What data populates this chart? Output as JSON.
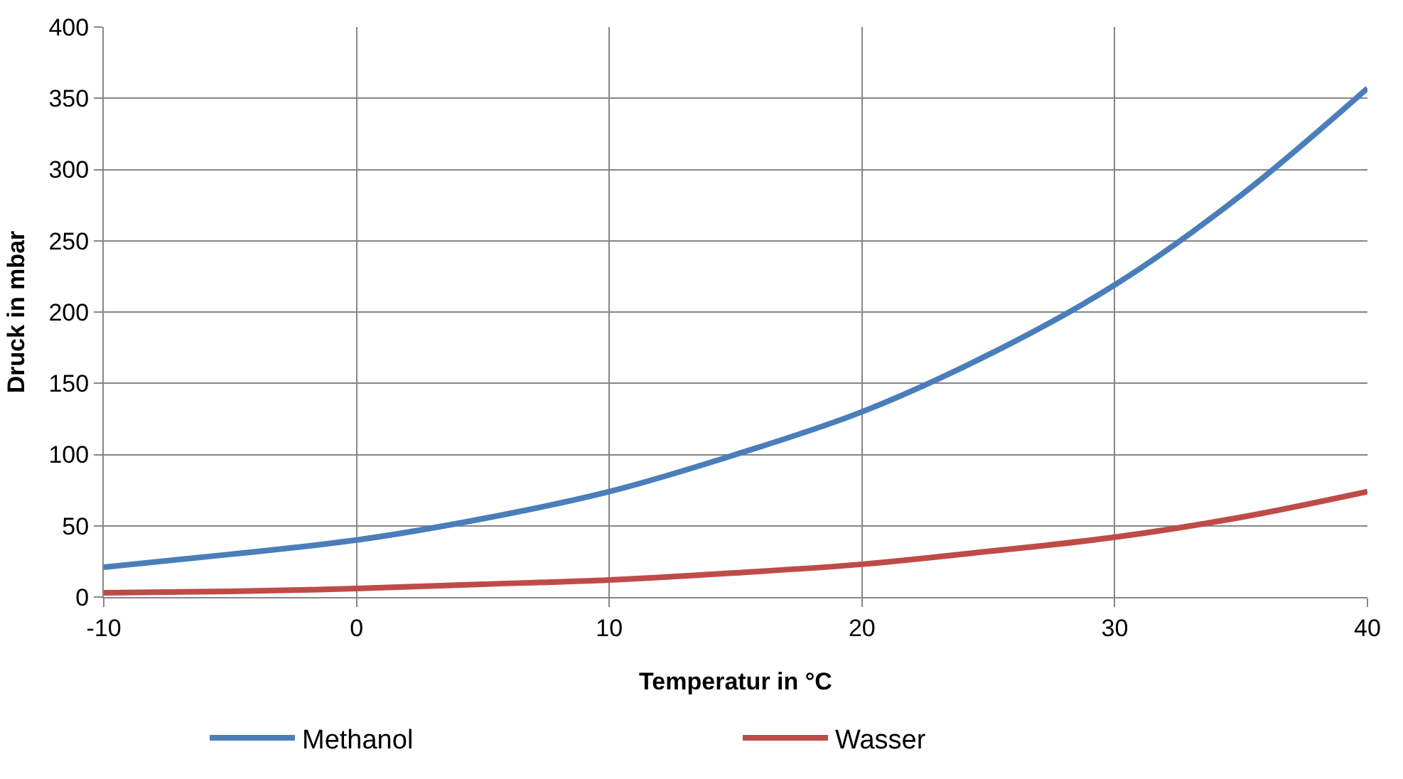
{
  "chart_data": {
    "type": "line",
    "xlabel": "Temperatur in °C",
    "ylabel": "Druck in mbar",
    "x": [
      -10,
      -5,
      0,
      5,
      10,
      15,
      20,
      25,
      30,
      35,
      40
    ],
    "series": [
      {
        "name": "Methanol",
        "color": "#4a7ebb",
        "values": [
          21,
          30,
          40,
          55,
          74,
          100,
          130,
          170,
          219,
          282,
          357
        ]
      },
      {
        "name": "Wasser",
        "color": "#be4b48",
        "values": [
          3,
          4,
          6,
          9,
          12,
          17,
          23,
          32,
          42,
          56,
          74
        ]
      }
    ],
    "xlim": [
      -10,
      40
    ],
    "xticks": [
      -10,
      0,
      10,
      20,
      30,
      40
    ],
    "ylim": [
      0,
      400
    ],
    "yticks": [
      0,
      50,
      100,
      150,
      200,
      250,
      300,
      350,
      400
    ],
    "grid": true,
    "legend": "bottom",
    "marker": "none",
    "line_style": "solid"
  }
}
